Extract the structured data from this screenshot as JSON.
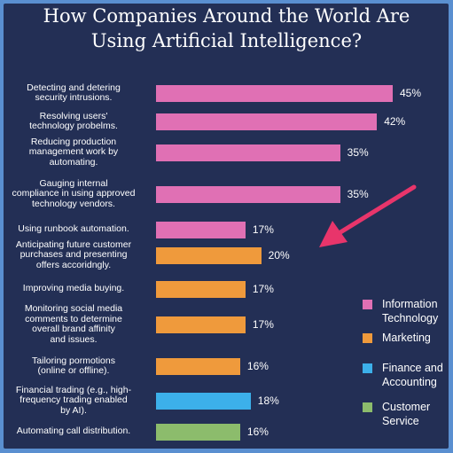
{
  "title_line1": "How Companies Around the World Are",
  "title_line2": "Using Artificial Intelligence?",
  "colors": {
    "information_technology": "#e070b4",
    "marketing": "#ef9a3c",
    "finance_accounting": "#3cb0ea",
    "customer_service": "#8cbc6c",
    "arrow": "#e8356b"
  },
  "legend": [
    {
      "key": "information_technology",
      "line1": "Information",
      "line2": "Technology"
    },
    {
      "key": "marketing",
      "line1": "Marketing",
      "line2": ""
    },
    {
      "key": "finance_accounting",
      "line1": "Finance and",
      "line2": "Accounting"
    },
    {
      "key": "customer_service",
      "line1": "Customer",
      "line2": "Service"
    }
  ],
  "chart_data": {
    "type": "bar",
    "orientation": "horizontal",
    "title": "How Companies Around the World Are Using Artificial Intelligence?",
    "xlim": [
      0,
      50
    ],
    "grid": false,
    "legend_position": "right",
    "categories": [
      [
        "Detecting and detering",
        "security intrusions."
      ],
      [
        "Resolving users'",
        "technology probelms."
      ],
      [
        "Reducing production",
        "management work by",
        "automating."
      ],
      [
        "Gauging internal",
        "compliance in using approved",
        "technology vendors."
      ],
      [
        "Using runbook automation."
      ],
      [
        "Anticipating future customer",
        "purchases and presenting",
        "offers accoridngly."
      ],
      [
        "Improving media buying."
      ],
      [
        "Monitoring social media",
        "comments to determine",
        "overall brand affinity",
        "and issues."
      ],
      [
        "Tailoring pormotions",
        "(online or offline)."
      ],
      [
        "Financial trading (e.g., high-",
        "frequency trading enabled",
        "by AI)."
      ],
      [
        "Automating call distribution."
      ]
    ],
    "values": [
      45,
      42,
      35,
      35,
      17,
      20,
      17,
      17,
      16,
      18,
      16
    ],
    "value_labels": [
      "45%",
      "42%",
      "35%",
      "35%",
      "17%",
      "20%",
      "17%",
      "17%",
      "16%",
      "18%",
      "16%"
    ],
    "groups": [
      "information_technology",
      "information_technology",
      "information_technology",
      "information_technology",
      "information_technology",
      "marketing",
      "marketing",
      "marketing",
      "marketing",
      "finance_accounting",
      "customer_service"
    ],
    "highlighted_category_index": 5
  }
}
